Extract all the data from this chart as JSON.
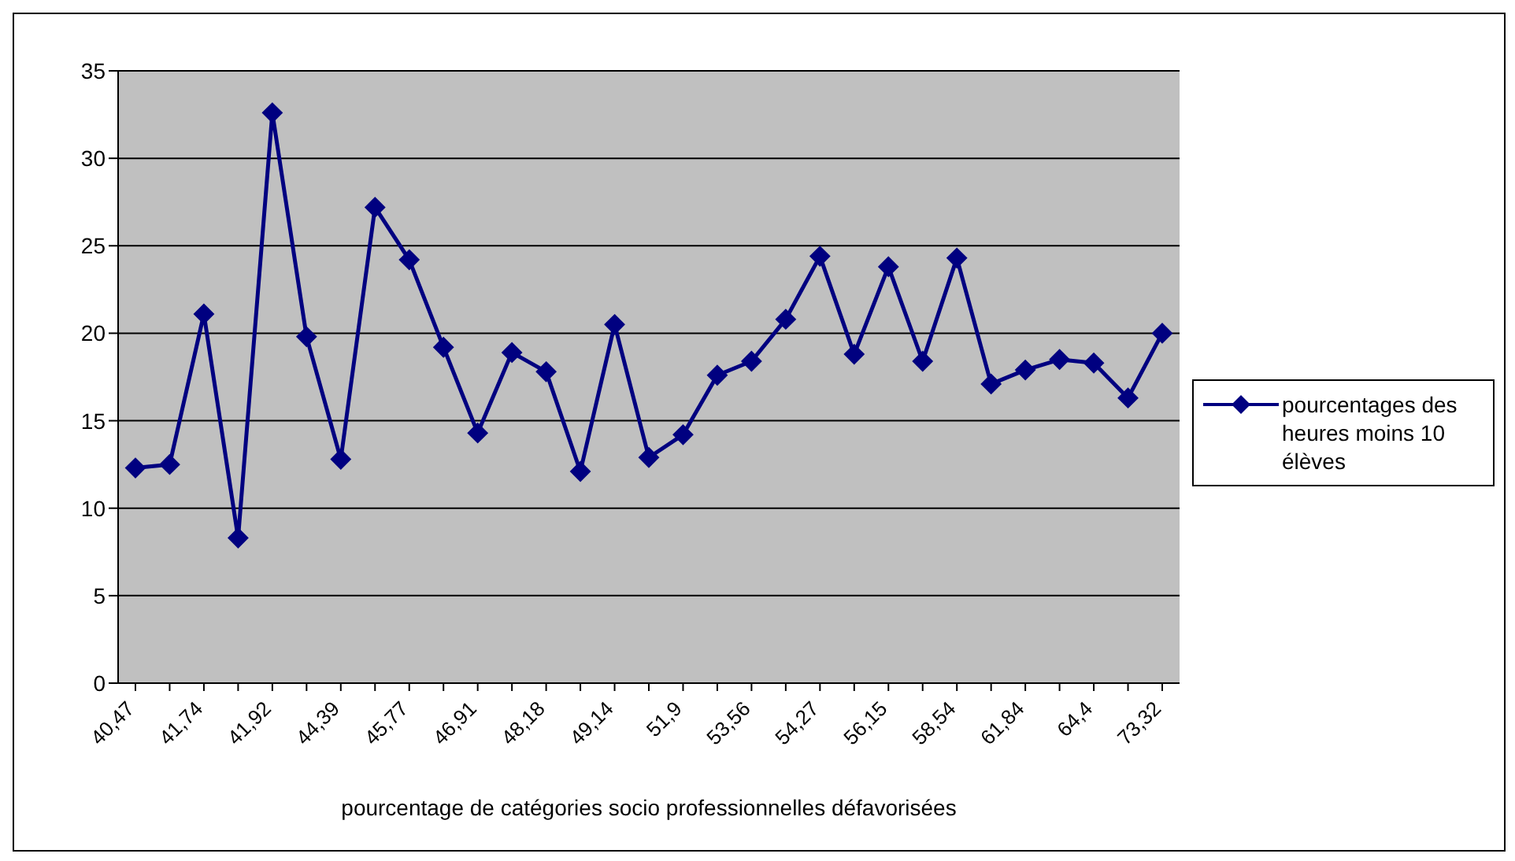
{
  "chart_data": {
    "type": "line",
    "xlabel": "pourcentage de catégories socio professionnelles défavorisées",
    "categories": [
      "40,47",
      null,
      "41,74",
      null,
      "41,92",
      null,
      "44,39",
      null,
      "45,77",
      null,
      "46,91",
      null,
      "48,18",
      null,
      "49,14",
      null,
      "51,9",
      null,
      "53,56",
      null,
      "54,27",
      null,
      "56,15",
      null,
      "58,54",
      null,
      "61,84",
      null,
      "64,4",
      null,
      "73,32"
    ],
    "series": [
      {
        "name": "pourcentages des heures moins 10 élèves",
        "color": "#000080",
        "values": [
          12.3,
          12.5,
          21.1,
          8.3,
          32.6,
          19.8,
          12.8,
          27.2,
          24.2,
          19.2,
          14.3,
          18.9,
          17.8,
          12.1,
          20.5,
          12.9,
          14.2,
          17.6,
          18.4,
          20.8,
          24.4,
          18.8,
          23.8,
          18.4,
          24.3,
          17.1,
          17.9,
          18.5,
          18.3,
          16.3,
          20.0
        ]
      }
    ],
    "ylim": [
      0,
      35
    ],
    "yticks": [
      0,
      5,
      10,
      15,
      20,
      25,
      30,
      35
    ],
    "grid": "y",
    "legend": "right",
    "marker": "diamond",
    "line_style": "solid"
  }
}
